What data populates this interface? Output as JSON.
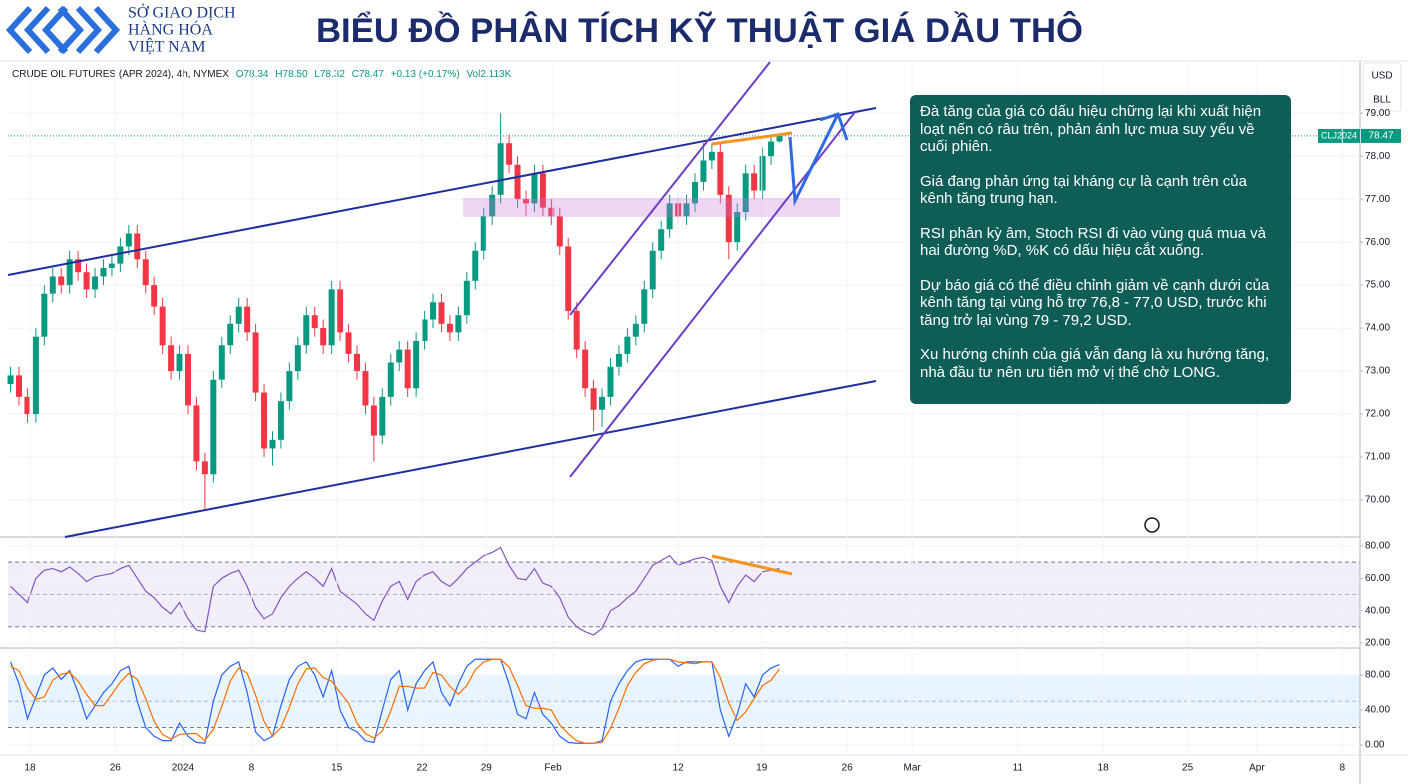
{
  "header": {
    "brand": [
      "SỞ GIAO DỊCH",
      "HÀNG HÓA",
      "VIỆT NAM"
    ],
    "title": "BIỂU ĐỒ PHÂN TÍCH KỸ THUẬT GIÁ DẦU THÔ"
  },
  "toolbar": {
    "currency": "USD",
    "unit": "BLL"
  },
  "analysis": [
    "Đà tăng của giá có dấu hiệu chững lại khi xuất hiện loạt nến có râu trên, phản ánh lực mua suy yếu về cuối phiên.",
    "Giá đang phản ứng tại kháng cự là cạnh trên của kênh tăng trung hạn.",
    "RSI phân kỳ âm, Stoch RSI đi vào vùng quá mua và hai đường %D, %K có dấu hiệu cắt xuống.",
    "Dự báo giá có thể điều chỉnh giảm về cạnh dưới của kênh tăng tại vùng hỗ trợ 76,8 - 77,0 USD, trước khi tăng trở lại vùng 79 - 79,2 USD.",
    "Xu hướng chính của giá vẫn đang là xu hướng tăng, nhà đầu tư nên ưu tiên mở vị thế chờ LONG."
  ],
  "chart_data": [
    {
      "type": "candlestick",
      "title": "CRUDE OIL FUTURES (APR 2024), 4h, NYMEX",
      "readout": [
        "O78.34",
        "H78.50",
        "L78.32",
        "C78.47",
        "+0.13 (+0.17%)",
        "Vol2.113K"
      ],
      "symbol": "CLJ2024",
      "last_price": 78.47,
      "up_color": "#089981",
      "down_color": "#f23645",
      "open": [
        72.7,
        72.9,
        72.4,
        72.0,
        73.8,
        74.8,
        75.2,
        75.0,
        75.6,
        75.3,
        74.9,
        75.2,
        75.4,
        75.5,
        75.9,
        76.2,
        75.6,
        75.0,
        74.5,
        73.6,
        73.0,
        73.4,
        72.2,
        70.9,
        70.6,
        72.8,
        73.6,
        74.1,
        74.5,
        73.9,
        72.5,
        71.2,
        71.4,
        72.3,
        73.0,
        73.6,
        74.3,
        74.0,
        73.6,
        74.9,
        73.9,
        73.4,
        73.0,
        72.2,
        71.5,
        72.4,
        73.2,
        73.5,
        72.6,
        73.7,
        74.2,
        74.6,
        74.1,
        73.9,
        74.3,
        75.1,
        75.8,
        76.6,
        77.1,
        78.3,
        77.8,
        77.0,
        76.9,
        77.6,
        76.8,
        76.6,
        75.9,
        74.4,
        73.5,
        72.6,
        72.1,
        72.4,
        73.1,
        73.4,
        73.8,
        74.1,
        74.9,
        75.8,
        76.3,
        76.9,
        76.6,
        76.9,
        77.4,
        77.9,
        78.1,
        77.1,
        76.0,
        76.7,
        77.6,
        77.2,
        78.0,
        78.34
      ],
      "high": [
        73.1,
        73.1,
        72.6,
        74.0,
        75.0,
        75.4,
        75.4,
        75.8,
        75.8,
        75.5,
        75.4,
        75.6,
        75.7,
        76.1,
        76.4,
        76.4,
        75.8,
        75.2,
        74.7,
        73.8,
        73.6,
        73.6,
        72.4,
        71.1,
        73.0,
        73.8,
        74.3,
        74.7,
        74.7,
        74.1,
        72.7,
        71.6,
        72.5,
        73.2,
        73.8,
        74.5,
        74.5,
        74.2,
        75.1,
        75.1,
        74.1,
        73.6,
        73.2,
        72.4,
        72.6,
        73.4,
        73.7,
        73.7,
        73.9,
        74.4,
        74.8,
        74.8,
        74.3,
        74.5,
        75.3,
        76.0,
        76.8,
        77.3,
        79.0,
        78.5,
        78.0,
        77.2,
        77.8,
        77.8,
        77.0,
        76.8,
        76.1,
        74.6,
        73.7,
        72.8,
        72.6,
        73.3,
        73.6,
        74.0,
        74.3,
        75.1,
        76.0,
        76.5,
        77.1,
        77.1,
        77.1,
        77.6,
        78.3,
        78.3,
        78.3,
        77.3,
        76.9,
        77.8,
        77.8,
        78.2,
        78.5,
        78.5
      ],
      "low": [
        72.5,
        72.2,
        71.8,
        71.8,
        73.6,
        74.6,
        74.8,
        74.8,
        75.1,
        74.7,
        74.7,
        75.0,
        75.2,
        75.3,
        75.7,
        75.4,
        74.8,
        74.3,
        73.4,
        72.8,
        72.8,
        72.0,
        70.7,
        69.8,
        70.4,
        72.6,
        73.4,
        73.9,
        73.7,
        72.3,
        71.0,
        70.8,
        71.2,
        72.1,
        72.8,
        73.4,
        73.8,
        73.4,
        73.4,
        73.7,
        73.2,
        72.8,
        72.0,
        70.9,
        71.3,
        72.2,
        73.0,
        72.4,
        72.4,
        73.5,
        74.0,
        73.9,
        73.7,
        73.7,
        74.1,
        74.9,
        75.6,
        76.4,
        76.9,
        77.6,
        76.8,
        76.6,
        76.7,
        76.6,
        76.4,
        75.7,
        74.2,
        73.3,
        72.4,
        71.6,
        71.7,
        72.2,
        72.9,
        73.2,
        73.6,
        73.9,
        74.7,
        75.6,
        76.1,
        76.4,
        76.4,
        76.7,
        77.2,
        77.7,
        76.9,
        75.6,
        75.8,
        76.5,
        77.0,
        77.0,
        77.8,
        78.32
      ],
      "close": [
        72.9,
        72.4,
        72.0,
        73.8,
        74.8,
        75.2,
        75.0,
        75.6,
        75.3,
        74.9,
        75.2,
        75.4,
        75.5,
        75.9,
        76.2,
        75.6,
        75.0,
        74.5,
        73.6,
        73.0,
        73.4,
        72.2,
        70.9,
        70.6,
        72.8,
        73.6,
        74.1,
        74.5,
        73.9,
        72.5,
        71.2,
        71.4,
        72.3,
        73.0,
        73.6,
        74.3,
        74.0,
        73.6,
        74.9,
        73.9,
        73.4,
        73.0,
        72.2,
        71.5,
        72.4,
        73.2,
        73.5,
        72.6,
        73.7,
        74.2,
        74.6,
        74.1,
        73.9,
        74.3,
        75.1,
        75.8,
        76.6,
        77.1,
        78.3,
        77.8,
        77.0,
        76.9,
        77.6,
        76.8,
        76.6,
        75.9,
        74.4,
        73.5,
        72.6,
        72.1,
        72.4,
        73.1,
        73.4,
        73.8,
        74.1,
        74.9,
        75.8,
        76.3,
        76.9,
        76.6,
        76.9,
        77.4,
        77.9,
        78.1,
        77.1,
        76.0,
        76.7,
        77.6,
        77.2,
        78.0,
        78.34,
        78.47
      ],
      "xlim": [
        -0.3,
        159.7
      ],
      "ylim": [
        69.14,
        80.19
      ],
      "yticks": [
        {
          "value": 70,
          "label": "70.00"
        },
        {
          "value": 71,
          "label": "71.00"
        },
        {
          "value": 72,
          "label": "72.00"
        },
        {
          "value": 73,
          "label": "73.00"
        },
        {
          "value": 74,
          "label": "74.00"
        },
        {
          "value": 75,
          "label": "75.00"
        },
        {
          "value": 76,
          "label": "76.00"
        },
        {
          "value": 77,
          "label": "77.00"
        },
        {
          "value": 78,
          "label": "78.00"
        },
        {
          "value": 79,
          "label": "79.00"
        }
      ],
      "grid": true
    },
    {
      "type": "line",
      "xlim": [
        -0.3,
        159.7
      ],
      "ylim": [
        16.9,
        84.9
      ],
      "yticks": [
        {
          "value": 20,
          "label": "20.00"
        },
        {
          "value": 40,
          "label": "40.00"
        },
        {
          "value": 60,
          "label": "60.00"
        },
        {
          "value": 80,
          "label": "80.00"
        }
      ],
      "band": [
        30,
        70
      ],
      "midline": 50,
      "band_color": "#7e57c2",
      "grid": true,
      "series": [
        {
          "color": "#7e57c2",
          "values": [
            55,
            50,
            45,
            60,
            65,
            66,
            64,
            67,
            63,
            58,
            61,
            62,
            63,
            66,
            68,
            60,
            52,
            48,
            42,
            38,
            45,
            35,
            28,
            27,
            55,
            60,
            63,
            65,
            55,
            42,
            35,
            38,
            48,
            55,
            60,
            64,
            60,
            55,
            66,
            52,
            48,
            44,
            38,
            34,
            46,
            55,
            58,
            47,
            58,
            62,
            64,
            58,
            55,
            60,
            66,
            70,
            74,
            76,
            79,
            68,
            60,
            59,
            66,
            57,
            55,
            48,
            36,
            30,
            27,
            25,
            29,
            40,
            43,
            48,
            52,
            60,
            68,
            71,
            74,
            68,
            70,
            72,
            73,
            71,
            55,
            45,
            55,
            62,
            58,
            64,
            65,
            66
          ]
        }
      ]
    },
    {
      "type": "line",
      "xlim": [
        -0.3,
        159.7
      ],
      "ylim": [
        -11.4,
        108.6
      ],
      "yticks": [
        {
          "value": 0,
          "label": "0.00"
        },
        {
          "value": 40,
          "label": "40.00"
        },
        {
          "value": 80,
          "label": "80.00"
        }
      ],
      "band": [
        20,
        80
      ],
      "midline": 50,
      "band_color": "#2196f3",
      "grid": true,
      "xticks": [
        {
          "value": 2.3,
          "label": "18"
        },
        {
          "value": 12.4,
          "label": "26"
        },
        {
          "value": 20.4,
          "label": "2024"
        },
        {
          "value": 28.5,
          "label": "8"
        },
        {
          "value": 38.6,
          "label": "15"
        },
        {
          "value": 48.7,
          "label": "22"
        },
        {
          "value": 56.3,
          "label": "29"
        },
        {
          "value": 64.2,
          "label": "Feb"
        },
        {
          "value": 79.0,
          "label": "12"
        },
        {
          "value": 88.9,
          "label": "19"
        },
        {
          "value": 99.0,
          "label": "26"
        },
        {
          "value": 106.7,
          "label": "Mar"
        },
        {
          "value": 119.2,
          "label": "11"
        },
        {
          "value": 129.3,
          "label": "18"
        },
        {
          "value": 139.3,
          "label": "25"
        },
        {
          "value": 147.5,
          "label": "Apr"
        },
        {
          "value": 157.6,
          "label": "8"
        }
      ],
      "series": [
        {
          "color": "#2962ff",
          "values": [
            95,
            70,
            30,
            55,
            80,
            88,
            75,
            85,
            60,
            30,
            45,
            60,
            70,
            85,
            90,
            50,
            20,
            10,
            5,
            5,
            25,
            10,
            3,
            2,
            50,
            80,
            90,
            95,
            60,
            15,
            5,
            10,
            45,
            75,
            90,
            95,
            80,
            55,
            85,
            40,
            20,
            15,
            5,
            3,
            40,
            75,
            85,
            40,
            70,
            85,
            95,
            60,
            45,
            70,
            90,
            98,
            98,
            98,
            98,
            70,
            35,
            30,
            60,
            35,
            25,
            10,
            3,
            2,
            2,
            2,
            5,
            50,
            70,
            85,
            95,
            98,
            98,
            98,
            98,
            90,
            95,
            95,
            95,
            95,
            40,
            10,
            35,
            70,
            55,
            80,
            88,
            92
          ]
        },
        {
          "color": "#ff6d00",
          "values": [
            90,
            85,
            65,
            52,
            55,
            74,
            81,
            83,
            73,
            58,
            45,
            45,
            58,
            72,
            82,
            75,
            53,
            27,
            12,
            7,
            12,
            13,
            13,
            5,
            18,
            44,
            73,
            88,
            82,
            57,
            27,
            10,
            20,
            43,
            70,
            87,
            88,
            77,
            73,
            60,
            48,
            25,
            13,
            8,
            16,
            39,
            67,
            67,
            65,
            65,
            83,
            80,
            67,
            58,
            68,
            86,
            95,
            98,
            98,
            89,
            68,
            45,
            42,
            42,
            40,
            23,
            13,
            5,
            2,
            2,
            3,
            19,
            42,
            68,
            83,
            93,
            97,
            98,
            98,
            95,
            94,
            93,
            95,
            95,
            77,
            48,
            28,
            38,
            53,
            68,
            74,
            87
          ]
        }
      ]
    }
  ]
}
